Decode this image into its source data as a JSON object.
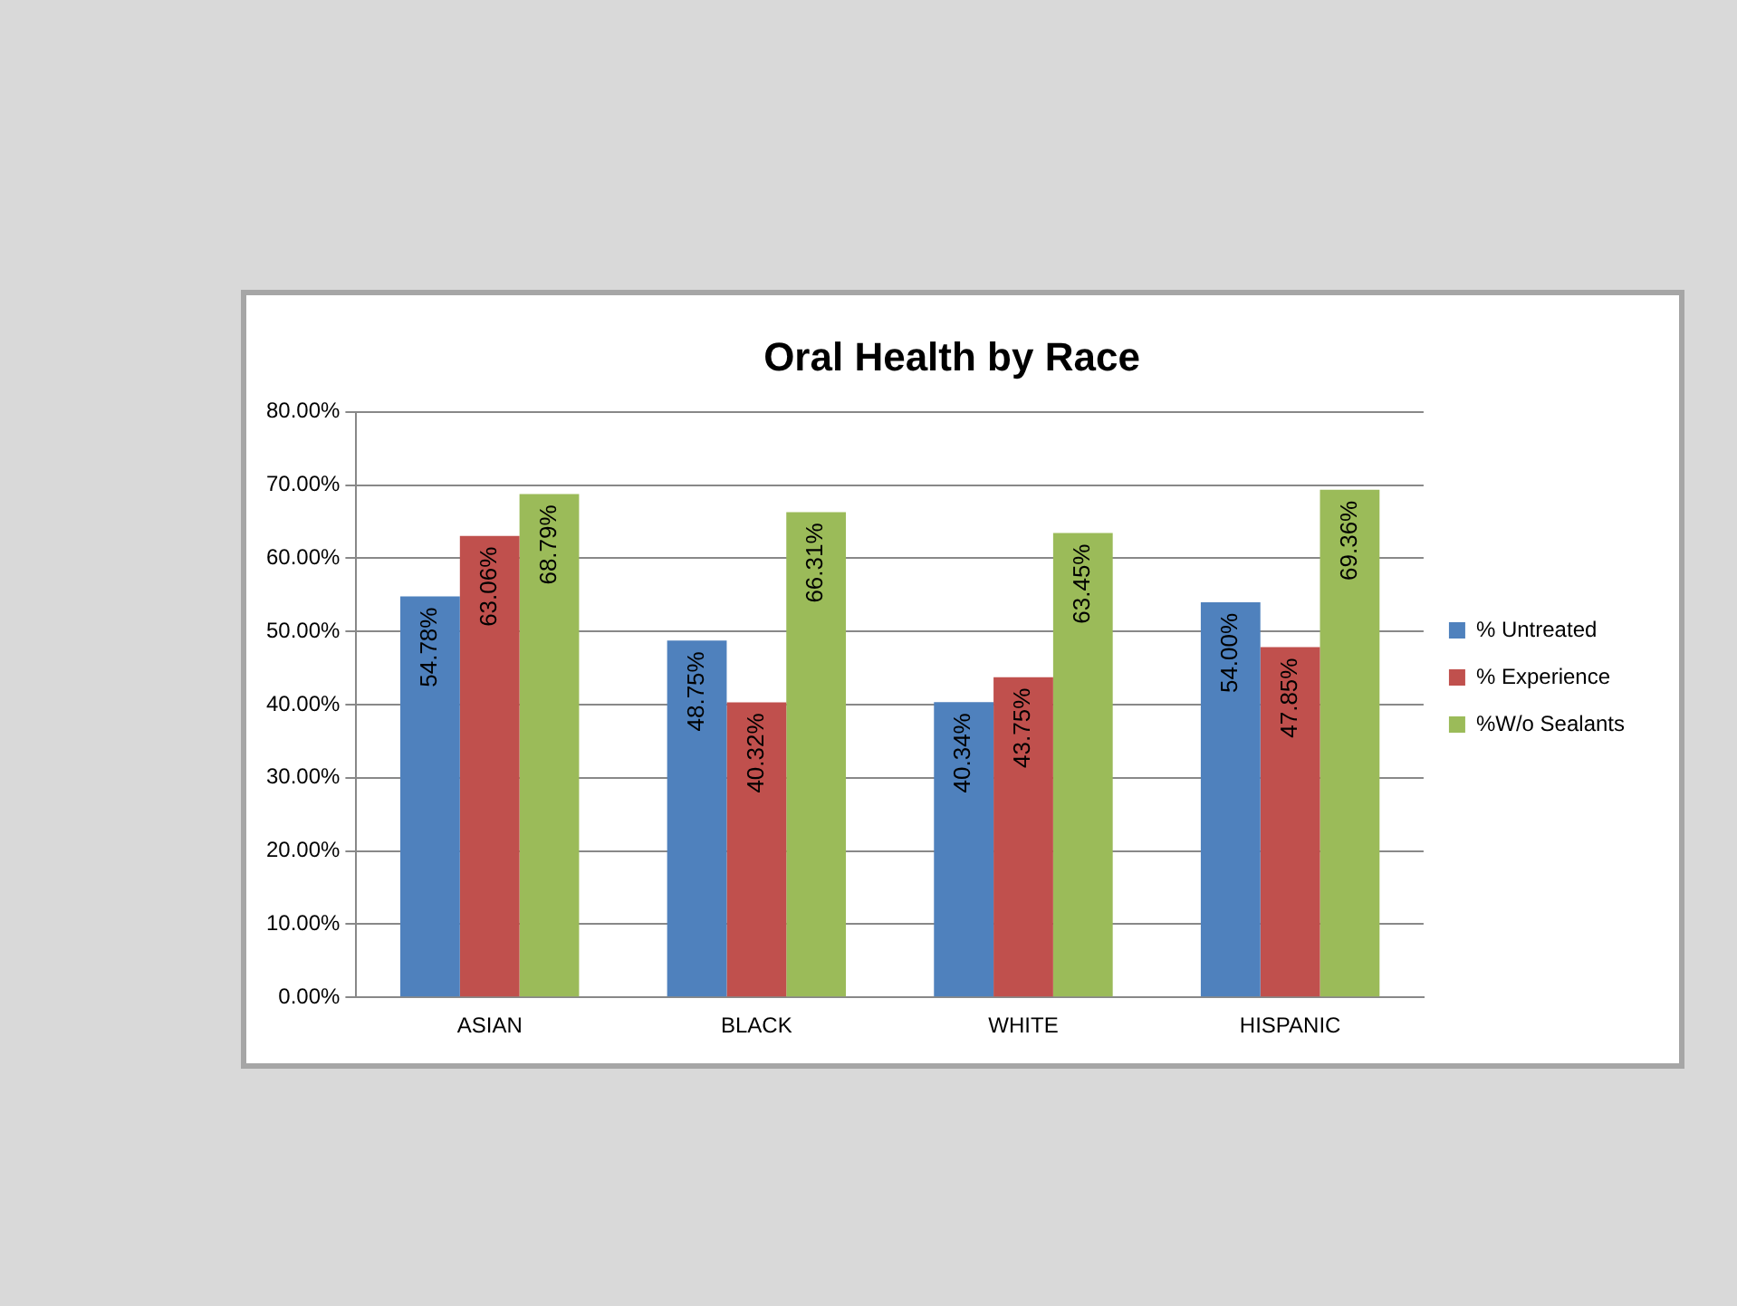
{
  "chart_data": {
    "type": "bar",
    "title": "Oral Health by Race",
    "categories": [
      "ASIAN",
      "BLACK",
      "WHITE",
      "HISPANIC"
    ],
    "series": [
      {
        "name": "% Untreated",
        "color": "#4f81bd",
        "values": [
          54.78,
          48.75,
          40.34,
          54.0
        ],
        "value_labels": [
          "54.78%",
          "48.75%",
          "40.34%",
          "54.00%"
        ]
      },
      {
        "name": "% Experience",
        "color": "#c0504d",
        "values": [
          63.06,
          40.32,
          43.75,
          47.85
        ],
        "value_labels": [
          "63.06%",
          "40.32%",
          "43.75%",
          "47.85%"
        ]
      },
      {
        "name": "%W/o Sealants",
        "color": "#9bbb59",
        "values": [
          68.79,
          66.31,
          63.45,
          69.36
        ],
        "value_labels": [
          "68.79%",
          "66.31%",
          "63.45%",
          "69.36%"
        ]
      }
    ],
    "ylim": [
      0,
      80
    ],
    "yticks": [
      {
        "value": 0,
        "label": "0.00%"
      },
      {
        "value": 10,
        "label": "10.00%"
      },
      {
        "value": 20,
        "label": "20.00%"
      },
      {
        "value": 30,
        "label": "30.00%"
      },
      {
        "value": 40,
        "label": "40.00%"
      },
      {
        "value": 50,
        "label": "50.00%"
      },
      {
        "value": 60,
        "label": "60.00%"
      },
      {
        "value": 70,
        "label": "70.00%"
      },
      {
        "value": 80,
        "label": "80.00%"
      }
    ],
    "grid": "y",
    "legend": "right"
  }
}
